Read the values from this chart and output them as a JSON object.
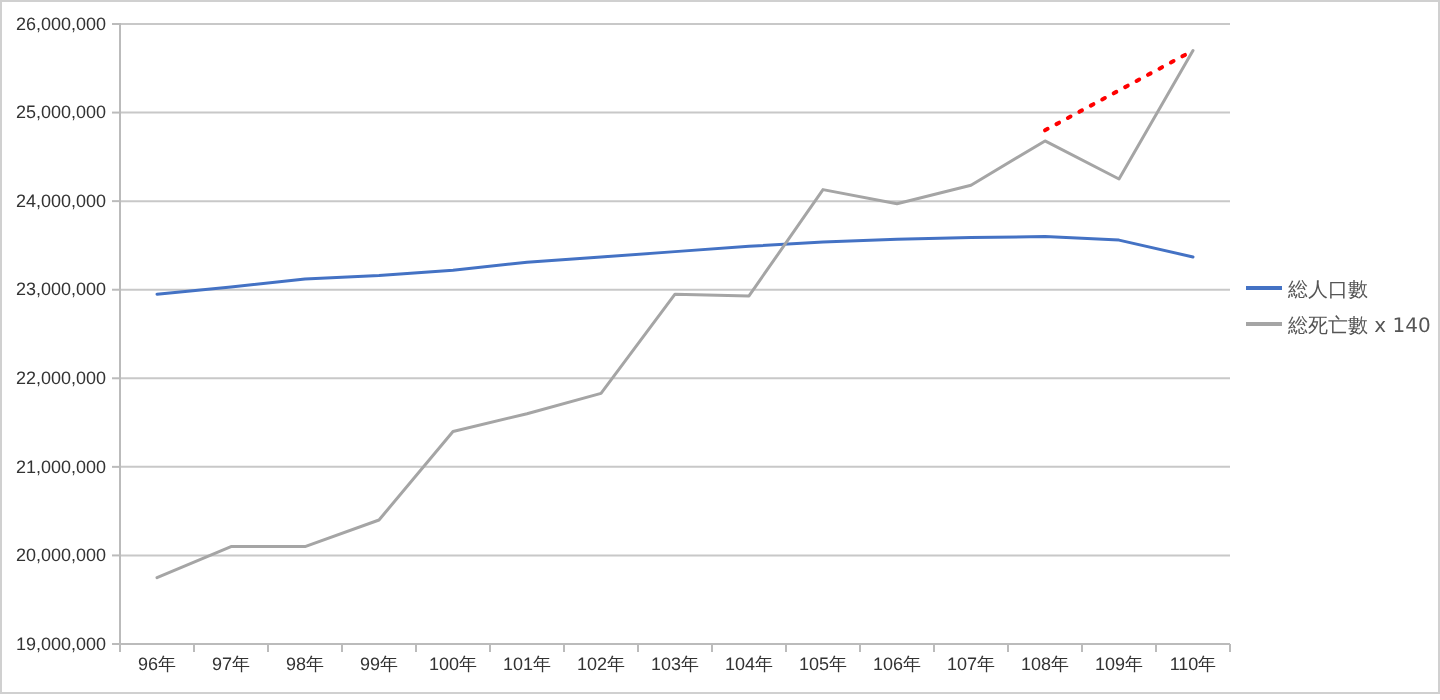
{
  "chart_data": {
    "type": "line",
    "categories": [
      "96年",
      "97年",
      "98年",
      "99年",
      "100年",
      "101年",
      "102年",
      "103年",
      "104年",
      "105年",
      "106年",
      "107年",
      "108年",
      "109年",
      "110年"
    ],
    "series": [
      {
        "name": "総人口數",
        "color": "#4472c4",
        "values": [
          22950000,
          23030000,
          23120000,
          23160000,
          23220000,
          23310000,
          23370000,
          23430000,
          23490000,
          23540000,
          23570000,
          23590000,
          23600000,
          23560000,
          23370000
        ]
      },
      {
        "name": "総死亡數 x 140",
        "color": "#a5a5a5",
        "values": [
          19750000,
          20100000,
          20100000,
          20400000,
          21400000,
          21600000,
          21830000,
          22950000,
          22930000,
          24130000,
          23970000,
          24180000,
          24680000,
          24250000,
          25700000
        ]
      },
      {
        "color": "#ff0000",
        "line_style": "dotted",
        "values": [
          null,
          null,
          null,
          null,
          null,
          null,
          null,
          null,
          null,
          null,
          null,
          null,
          24800000,
          25250000,
          25700000
        ]
      }
    ],
    "ylim": [
      19000000,
      26000000
    ],
    "yticks": [
      {
        "value": 19000000,
        "label": "19,000,000"
      },
      {
        "value": 20000000,
        "label": "20,000,000"
      },
      {
        "value": 21000000,
        "label": "21,000,000"
      },
      {
        "value": 22000000,
        "label": "22,000,000"
      },
      {
        "value": 23000000,
        "label": "23,000,000"
      },
      {
        "value": 24000000,
        "label": "24,000,000"
      },
      {
        "value": 25000000,
        "label": "25,000,000"
      },
      {
        "value": 26000000,
        "label": "26,000,000"
      }
    ],
    "grid": "y",
    "legend": "right",
    "line_style": "solid"
  }
}
